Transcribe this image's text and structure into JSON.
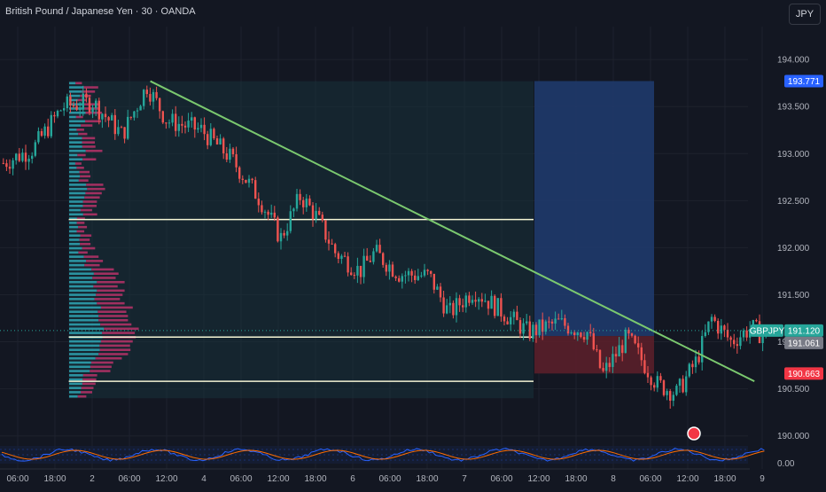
{
  "header": {
    "title": "British Pound / Japanese Yen · 30 · OANDA",
    "currency_button": "JPY"
  },
  "colors": {
    "background": "#131722",
    "up": "#26a69a",
    "down": "#ef5350",
    "trendline": "#7bc96f",
    "level_line": "#f5f5d5",
    "profile_up": "#2fa7b5",
    "profile_down": "#b83268",
    "target_zone": "#1f3a6b",
    "stop_zone": "#5a1f2a",
    "oscillator_k": "#2962ff",
    "oscillator_d": "#ff6d00"
  },
  "price_badges": {
    "target": "193.771",
    "symbol": "GBPJPY",
    "current": "191.120",
    "entry": "191.061",
    "stop": "190.663"
  },
  "oscillator": {
    "axis_label": "0.00"
  },
  "chart_data": {
    "type": "candlestick",
    "symbol": "GBPJPY",
    "interval": "30",
    "source": "OANDA",
    "y_range": [
      189.95,
      194.35
    ],
    "y_ticks": [
      "194.000",
      "193.500",
      "193.000",
      "192.500",
      "192.000",
      "191.500",
      "191.000",
      "190.500",
      "190.000"
    ],
    "x_ticks": [
      "06:00",
      "18:00",
      "2",
      "06:00",
      "12:00",
      "4",
      "06:00",
      "12:00",
      "18:00",
      "6",
      "06:00",
      "18:00",
      "7",
      "06:00",
      "12:00",
      "18:00",
      "8",
      "06:00",
      "12:00",
      "18:00",
      "9"
    ],
    "price_path": [
      [
        0,
        192.9
      ],
      [
        6,
        193.05
      ],
      [
        12,
        193.5
      ],
      [
        18,
        193.55
      ],
      [
        24,
        193.2
      ],
      [
        29,
        193.72
      ],
      [
        33,
        193.35
      ],
      [
        40,
        193.25
      ],
      [
        46,
        192.95
      ],
      [
        52,
        192.5
      ],
      [
        56,
        192.1
      ],
      [
        60,
        192.55
      ],
      [
        63,
        192.35
      ],
      [
        67,
        191.95
      ],
      [
        72,
        191.75
      ],
      [
        75,
        191.95
      ],
      [
        80,
        191.72
      ],
      [
        86,
        191.7
      ],
      [
        90,
        191.3
      ],
      [
        95,
        191.55
      ],
      [
        100,
        191.35
      ],
      [
        106,
        191.1
      ],
      [
        112,
        191.2
      ],
      [
        118,
        191.1
      ],
      [
        121,
        190.65
      ],
      [
        126,
        191.05
      ],
      [
        132,
        190.55
      ],
      [
        136,
        190.45
      ],
      [
        140,
        190.8
      ],
      [
        143,
        191.25
      ],
      [
        147,
        191.0
      ],
      [
        151,
        191.15
      ],
      [
        154,
        191.05
      ]
    ],
    "horizontal_levels": [
      192.3,
      191.05,
      190.58
    ],
    "trendline": {
      "from": [
        30,
        193.77
      ],
      "to": [
        152,
        190.58
      ]
    },
    "position": {
      "type": "long",
      "target": 193.771,
      "entry": 191.061,
      "stop": 190.663,
      "current": 191.12
    }
  }
}
